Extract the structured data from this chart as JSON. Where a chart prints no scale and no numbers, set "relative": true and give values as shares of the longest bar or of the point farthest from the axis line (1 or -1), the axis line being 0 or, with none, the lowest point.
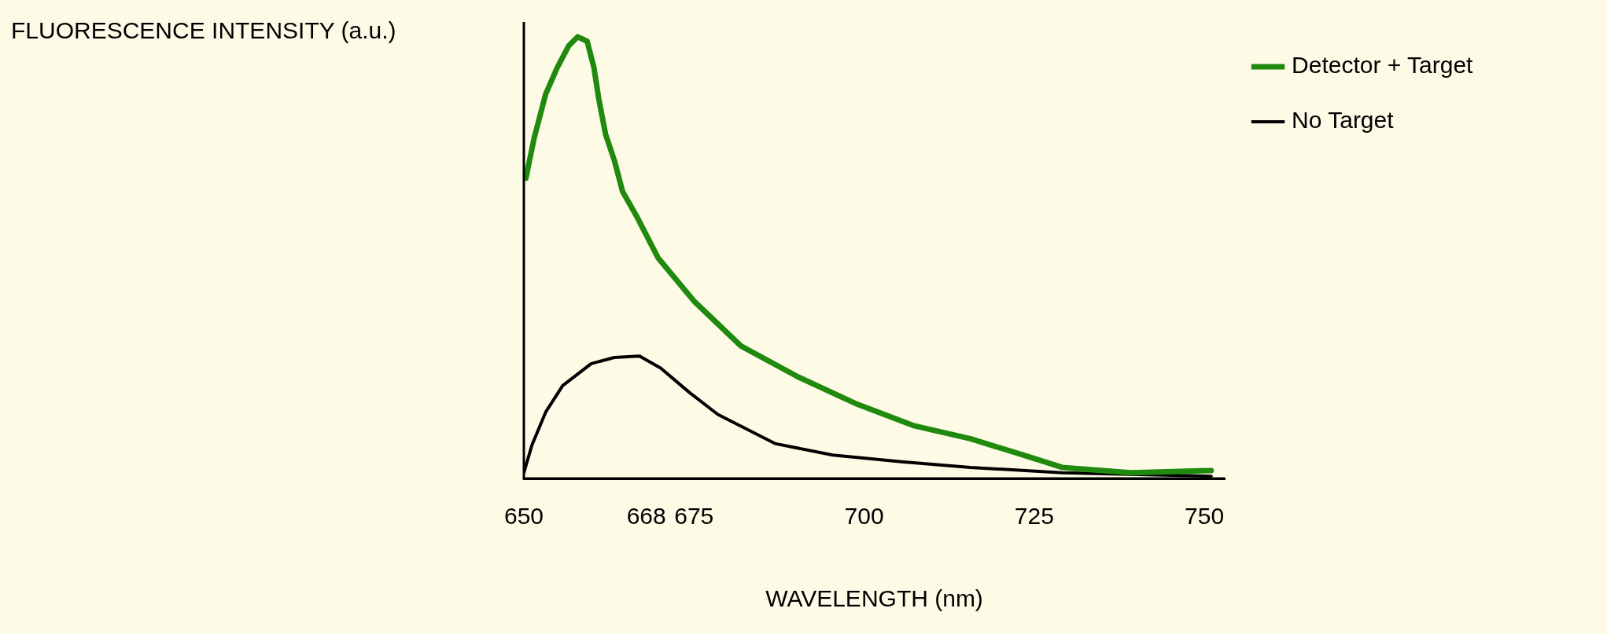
{
  "chart_data": {
    "type": "line",
    "relative": true,
    "xlabel": "WAVELENGTH (nm)",
    "ylabel": "FLUORESCENCE INTENSITY (a.u.)",
    "xlim": [
      650,
      753
    ],
    "xticks": [
      650,
      668,
      675,
      700,
      725,
      750
    ],
    "legend": "top right",
    "grid": false,
    "marker": "none",
    "line_style": "solid",
    "series": [
      {
        "name": "Detector + Target",
        "color": "#1f8a0e",
        "x": [
          650.3,
          651.5,
          653.2,
          654.9,
          656.6,
          657.9,
          659.3,
          660.3,
          661.0,
          662.0,
          663.3,
          664.5,
          666.7,
          669.7,
          675.1,
          681.9,
          690.3,
          698.7,
          707.2,
          715.6,
          724.0,
          729.1,
          739.2,
          751.0
        ],
        "values": [
          0.68,
          0.77,
          0.87,
          0.93,
          0.98,
          1.0,
          0.99,
          0.93,
          0.86,
          0.78,
          0.72,
          0.65,
          0.59,
          0.5,
          0.4,
          0.3,
          0.23,
          0.17,
          0.12,
          0.09,
          0.05,
          0.025,
          0.013,
          0.018
        ]
      },
      {
        "name": "No Target",
        "color": "#000000",
        "x": [
          650,
          651.2,
          653.2,
          655.7,
          659.9,
          663.3,
          667.0,
          670.1,
          674.3,
          678.5,
          686.9,
          695.4,
          705.5,
          715.6,
          729.1,
          742.6,
          751.0
        ],
        "values": [
          0.013,
          0.076,
          0.15,
          0.21,
          0.26,
          0.274,
          0.277,
          0.25,
          0.195,
          0.145,
          0.079,
          0.053,
          0.038,
          0.025,
          0.013,
          0.008,
          0.005
        ]
      }
    ]
  }
}
